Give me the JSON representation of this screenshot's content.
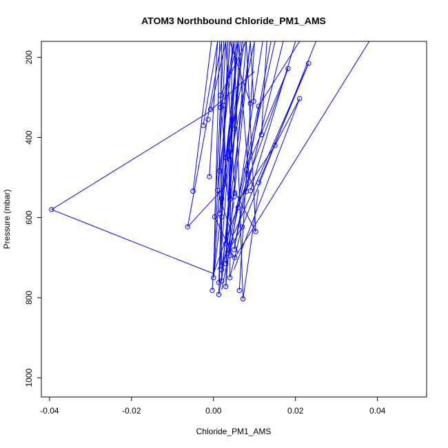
{
  "chart_data": {
    "type": "line",
    "title": "ATOM3 Northbound Chloride_PM1_AMS",
    "xlabel": "Chloride_PM1_AMS",
    "ylabel": "Pressure (mbar)",
    "xlim": [
      -0.042,
      0.052
    ],
    "ylim": [
      1048,
      160
    ],
    "y_reversed": true,
    "grid": false,
    "series_color": "#0000ff",
    "x_ticks": [
      {
        "value": -0.04,
        "label": "-0.04"
      },
      {
        "value": -0.02,
        "label": "-0.02"
      },
      {
        "value": 0.0,
        "label": "0.00"
      },
      {
        "value": 0.02,
        "label": "0.02"
      },
      {
        "value": 0.04,
        "label": "0.04"
      }
    ],
    "y_ticks": [
      {
        "value": 200,
        "label": "200"
      },
      {
        "value": 400,
        "label": "400"
      },
      {
        "value": 600,
        "label": "600"
      },
      {
        "value": 800,
        "label": "800"
      },
      {
        "value": 1000,
        "label": "1000"
      }
    ],
    "points": [
      {
        "x": -0.0395,
        "y": 580
      },
      {
        "x": -0.005,
        "y": 534
      },
      {
        "x": -0.0063,
        "y": 623
      },
      {
        "x": 0.0,
        "y": 750
      },
      {
        "x": -0.0003,
        "y": 782
      },
      {
        "x": 0.0013,
        "y": 762
      },
      {
        "x": 0.0013,
        "y": 792
      },
      {
        "x": 0.002,
        "y": 758
      },
      {
        "x": 0.003,
        "y": 772
      },
      {
        "x": 0.004,
        "y": 750
      },
      {
        "x": 0.0063,
        "y": 782
      },
      {
        "x": 0.0072,
        "y": 803
      },
      {
        "x": 0.002,
        "y": 730
      },
      {
        "x": 0.003,
        "y": 715
      },
      {
        "x": 0.004,
        "y": 695
      },
      {
        "x": 0.005,
        "y": 680
      },
      {
        "x": 0.007,
        "y": 623
      },
      {
        "x": 0.0052,
        "y": 700
      },
      {
        "x": 0.003,
        "y": 665
      },
      {
        "x": 0.0003,
        "y": 598
      },
      {
        "x": 0.002,
        "y": 598
      },
      {
        "x": 0.0015,
        "y": 590
      },
      {
        "x": 0.002,
        "y": 553
      },
      {
        "x": 0.004,
        "y": 555
      },
      {
        "x": 0.005,
        "y": 548
      },
      {
        "x": 0.0052,
        "y": 538
      },
      {
        "x": 0.006,
        "y": 575
      },
      {
        "x": 0.001,
        "y": 532
      },
      {
        "x": 0.008,
        "y": 535
      },
      {
        "x": 0.009,
        "y": 533
      },
      {
        "x": 0.011,
        "y": 513
      },
      {
        "x": 0.0103,
        "y": 635
      },
      {
        "x": 0.008,
        "y": 480
      },
      {
        "x": 0.0085,
        "y": 492
      },
      {
        "x": 0.0015,
        "y": 483
      },
      {
        "x": -0.001,
        "y": 498
      },
      {
        "x": 0.003,
        "y": 450
      },
      {
        "x": 0.004,
        "y": 455
      },
      {
        "x": 0.005,
        "y": 378
      },
      {
        "x": -0.0013,
        "y": 355
      },
      {
        "x": -0.0025,
        "y": 370
      },
      {
        "x": -0.0007,
        "y": 330
      },
      {
        "x": 0.0017,
        "y": 325
      },
      {
        "x": 0.0025,
        "y": 320
      },
      {
        "x": 0.0017,
        "y": 295
      },
      {
        "x": 0.003,
        "y": 450
      },
      {
        "x": 0.009,
        "y": 315
      },
      {
        "x": 0.0098,
        "y": 310
      },
      {
        "x": 0.011,
        "y": 322
      },
      {
        "x": 0.0117,
        "y": 393
      },
      {
        "x": 0.015,
        "y": 420
      },
      {
        "x": 0.021,
        "y": 303
      },
      {
        "x": 0.0182,
        "y": 228
      },
      {
        "x": 0.0232,
        "y": 215
      }
    ],
    "segments": [
      [
        -0.0395,
        580,
        0.0,
        740
      ],
      [
        -0.0395,
        580,
        -0.0013,
        338
      ],
      [
        -0.0013,
        338,
        0.01,
        235
      ],
      [
        -0.005,
        534,
        -0.0005,
        160
      ],
      [
        -0.0063,
        623,
        0.002,
        160
      ],
      [
        -0.0063,
        623,
        0.003,
        520
      ],
      [
        0.0,
        750,
        0.0015,
        160
      ],
      [
        0.0,
        750,
        0.004,
        160
      ],
      [
        -0.0003,
        782,
        0.003,
        160
      ],
      [
        0.0013,
        762,
        0.006,
        160
      ],
      [
        0.0013,
        792,
        0.0035,
        160
      ],
      [
        0.002,
        758,
        0.007,
        160
      ],
      [
        0.003,
        772,
        0.008,
        160
      ],
      [
        0.004,
        750,
        0.0045,
        160
      ],
      [
        0.0063,
        782,
        0.01,
        160
      ],
      [
        0.0072,
        803,
        0.011,
        530
      ],
      [
        0.0072,
        803,
        0.005,
        160
      ],
      [
        0.002,
        730,
        0.009,
        160
      ],
      [
        0.003,
        715,
        0.0055,
        160
      ],
      [
        0.004,
        695,
        0.012,
        160
      ],
      [
        0.005,
        680,
        0.014,
        160
      ],
      [
        0.007,
        623,
        0.025,
        160
      ],
      [
        0.0052,
        700,
        0.038,
        160
      ],
      [
        0.003,
        665,
        0.007,
        160
      ],
      [
        0.0003,
        598,
        0.0025,
        160
      ],
      [
        0.002,
        598,
        0.006,
        160
      ],
      [
        0.0015,
        590,
        0.004,
        160
      ],
      [
        0.002,
        553,
        0.0075,
        160
      ],
      [
        0.004,
        555,
        0.0065,
        160
      ],
      [
        0.005,
        548,
        0.009,
        160
      ],
      [
        0.0052,
        538,
        0.003,
        160
      ],
      [
        0.006,
        575,
        0.015,
        160
      ],
      [
        0.001,
        532,
        0.005,
        160
      ],
      [
        0.008,
        535,
        0.017,
        160
      ],
      [
        0.009,
        533,
        0.02,
        160
      ],
      [
        0.011,
        513,
        0.0232,
        215
      ],
      [
        0.0103,
        635,
        0.008,
        160
      ],
      [
        0.008,
        480,
        0.0182,
        228
      ],
      [
        0.0085,
        492,
        0.006,
        160
      ],
      [
        0.0015,
        483,
        0.002,
        160
      ],
      [
        -0.001,
        498,
        0.001,
        160
      ],
      [
        0.003,
        450,
        0.006,
        160
      ],
      [
        0.004,
        455,
        0.01,
        160
      ],
      [
        0.005,
        378,
        0.007,
        160
      ],
      [
        -0.0007,
        330,
        0.003,
        160
      ],
      [
        -0.0025,
        370,
        0.001,
        160
      ],
      [
        0.0017,
        325,
        0.006,
        160
      ],
      [
        0.0025,
        320,
        0.005,
        160
      ],
      [
        0.0017,
        295,
        0.008,
        160
      ],
      [
        0.009,
        315,
        0.004,
        160
      ],
      [
        0.0098,
        310,
        0.009,
        160
      ],
      [
        0.011,
        322,
        0.021,
        160
      ],
      [
        0.0117,
        393,
        0.013,
        160
      ],
      [
        0.015,
        420,
        0.021,
        303
      ],
      [
        0.021,
        303,
        0.005,
        730
      ],
      [
        0.0182,
        228,
        0.0,
        740
      ],
      [
        0.0232,
        215,
        0.005,
        640
      ],
      [
        0.015,
        420,
        0.006,
        560
      ],
      [
        0.0103,
        635,
        0.005,
        530
      ],
      [
        0.011,
        322,
        0.003,
        700
      ],
      [
        0.008,
        480,
        0.01,
        530
      ],
      [
        0.006,
        575,
        0.002,
        780
      ],
      [
        0.007,
        623,
        0.001,
        730
      ],
      [
        0.005,
        680,
        0.009,
        480
      ],
      [
        0.004,
        750,
        0.007,
        620
      ],
      [
        0.003,
        772,
        0.004,
        430
      ],
      [
        0.002,
        758,
        0.002,
        480
      ],
      [
        0.0013,
        792,
        0.005,
        560
      ],
      [
        0.0,
        750,
        0.003,
        490
      ],
      [
        0.001,
        532,
        0.006,
        690
      ],
      [
        0.002,
        553,
        0.0013,
        762
      ],
      [
        0.0003,
        598,
        0.005,
        700
      ],
      [
        0.0015,
        590,
        0.004,
        370
      ],
      [
        0.003,
        450,
        0.007,
        260
      ],
      [
        0.004,
        455,
        0.005,
        340
      ],
      [
        0.0025,
        320,
        0.003,
        520
      ],
      [
        0.0017,
        295,
        0.004,
        610
      ]
    ]
  }
}
